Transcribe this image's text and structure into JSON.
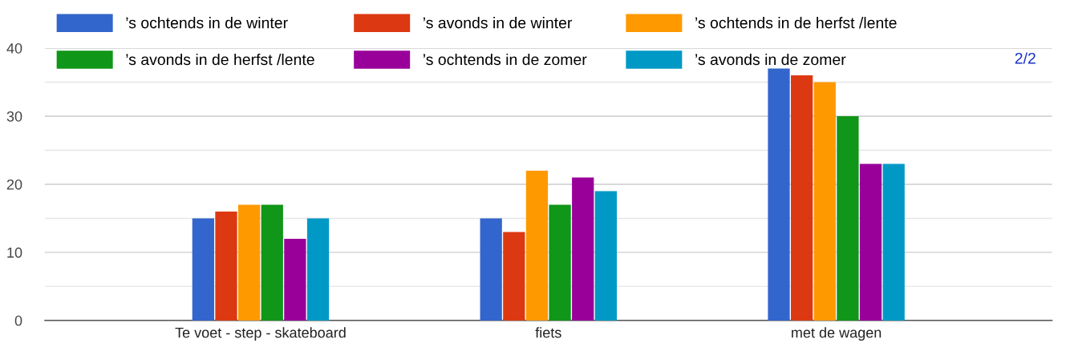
{
  "chart_data": {
    "type": "bar",
    "categories": [
      "Te voet - step - skateboard",
      "fiets",
      "met de wagen"
    ],
    "series": [
      {
        "name": "’s ochtends in de winter",
        "color": "#3366cc",
        "values": [
          15,
          15,
          37
        ]
      },
      {
        "name": "’s avonds in de winter",
        "color": "#dc3912",
        "values": [
          16,
          13,
          36
        ]
      },
      {
        "name": "’s ochtends in de herfst /lente",
        "color": "#ff9900",
        "values": [
          17,
          22,
          35
        ]
      },
      {
        "name": "’s avonds in de herfst /lente",
        "color": "#109618",
        "values": [
          17,
          17,
          30
        ]
      },
      {
        "name": "’s ochtends in de zomer",
        "color": "#990099",
        "values": [
          12,
          21,
          23
        ]
      },
      {
        "name": "’s avonds in de zomer",
        "color": "#0099c6",
        "values": [
          15,
          19,
          23
        ]
      }
    ],
    "ylim": [
      0,
      40
    ],
    "yticks": [
      0,
      {
        "value": 5,
        "label": null
      },
      10,
      {
        "value": 15,
        "label": null
      },
      20,
      {
        "value": 25,
        "label": null
      },
      30,
      {
        "value": 35,
        "label": null
      },
      40
    ],
    "grid": "y",
    "legend": "top",
    "annotations": [
      "2/2"
    ]
  }
}
